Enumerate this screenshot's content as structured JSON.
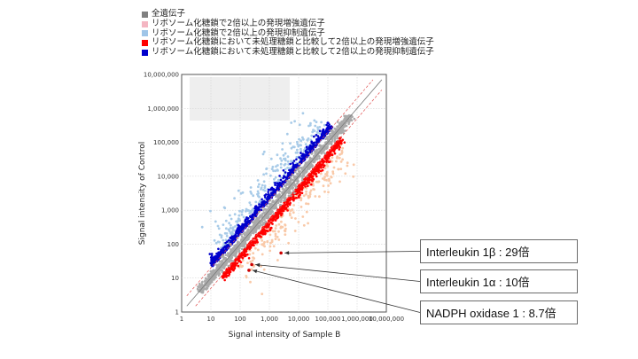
{
  "legend": [
    {
      "label": "全遺伝子",
      "color": "#808080"
    },
    {
      "label": "リボソーム化糖鎖で2倍以上の発現増強遺伝子",
      "color": "#f4b6c2"
    },
    {
      "label": "リボソーム化糖鎖で2倍以上の発現抑制遺伝子",
      "color": "#9fc5e8"
    },
    {
      "label": "リボソーム化糖鎖において未処理糖鎖と比較して2倍以上の発現増強遺伝子",
      "color": "#ff0000"
    },
    {
      "label": "リボソーム化糖鎖において未処理糖鎖と比較して2倍以上の発現抑制遺伝子",
      "color": "#0000cc"
    }
  ],
  "callouts": [
    {
      "text": "Interleukin 1β : 29倍"
    },
    {
      "text": "Interleukin 1α : 10倍"
    },
    {
      "text": "NADPH oxidase 1 : 8.7倍"
    }
  ],
  "chart_data": {
    "type": "scatter",
    "xlabel": "Signal intensity of Sample B",
    "ylabel": "Signal intensity of Control",
    "xlim": [
      1,
      10000000
    ],
    "ylim": [
      1,
      10000000
    ],
    "log_scale": true,
    "grid": true,
    "x_ticks": [
      "1",
      "10",
      "100",
      "1,000",
      "10,000",
      "100,000",
      "1,000,000",
      "10,000,000"
    ],
    "y_ticks": [
      "1",
      "10",
      "100",
      "1,000",
      "10,000",
      "100,000",
      "1,000,000",
      "10,000,000"
    ],
    "reference_lines": {
      "identity": "gray",
      "two_fold": "red dashed"
    },
    "series_colors": {
      "all": "#aaaaaa",
      "up_ribosome": "#f9c9a8",
      "down_ribosome": "#a8cbe8",
      "up_vs_untreated": "#ff0000",
      "down_vs_untreated": "#0000cc"
    },
    "highlighted_points": [
      {
        "gene": "Interleukin 1β",
        "x": 2500,
        "y": 55
      },
      {
        "gene": "Interleukin 1α",
        "x": 250,
        "y": 25
      },
      {
        "gene": "NADPH oxidase 1",
        "x": 200,
        "y": 17
      }
    ]
  }
}
